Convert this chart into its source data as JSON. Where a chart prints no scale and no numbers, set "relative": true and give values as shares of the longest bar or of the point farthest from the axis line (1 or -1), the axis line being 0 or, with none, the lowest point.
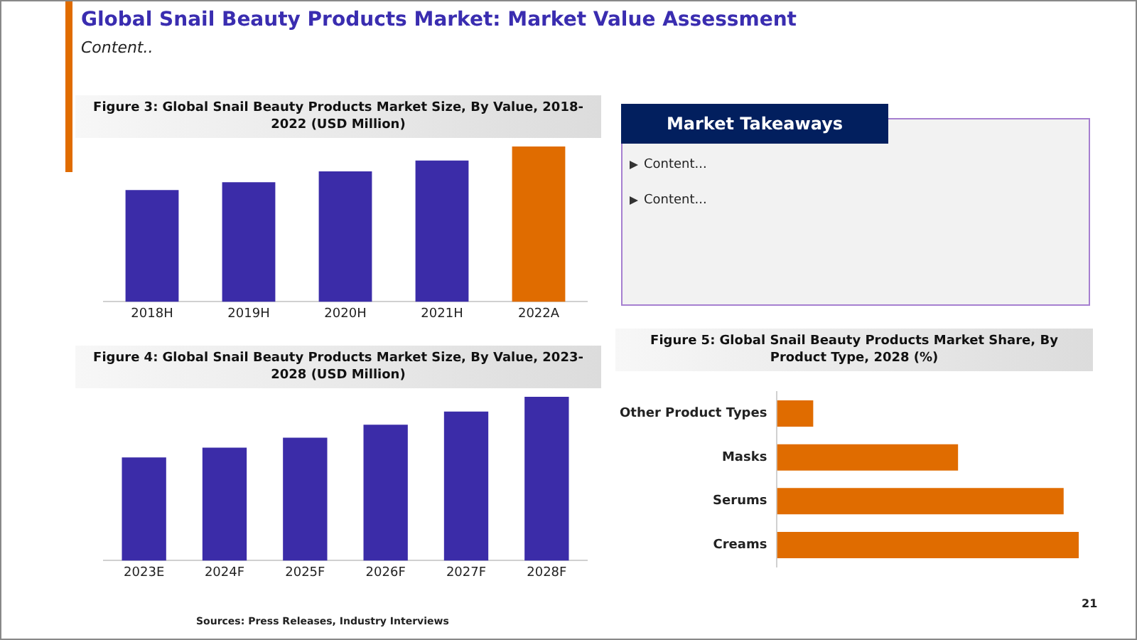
{
  "chart_data": [
    {
      "type": "other",
      "title": "Global Snail Beauty Products Market: Market Value Assessment",
      "subtitle": "Content..",
      "annotations": [
        "Sources: Press Releases, Industry Interviews",
        "21"
      ]
    },
    {
      "type": "bar",
      "title": "Figure 3: Global Snail Beauty Products Market Size, By Value, 2018-2022 (USD Million)",
      "categories": [
        "2018H",
        "2019H",
        "2020H",
        "2021H",
        "2022A"
      ],
      "values": [
        0.72,
        0.77,
        0.84,
        0.91,
        1
      ],
      "colors": [
        "#3b2ca8",
        "#3b2ca8",
        "#3b2ca8",
        "#3b2ca8",
        "#e06c00"
      ],
      "relative": true
    },
    {
      "type": "other",
      "title": "Market Takeaways",
      "annotations": [
        "Content...",
        "Content..."
      ]
    },
    {
      "type": "bar",
      "title": "Figure 4: Global Snail Beauty Products Market Size, By Value, 2023-2028 (USD Million)",
      "categories": [
        "2023E",
        "2024F",
        "2025F",
        "2026F",
        "2027F",
        "2028F"
      ],
      "values": [
        0.63,
        0.69,
        0.75,
        0.83,
        0.91,
        1
      ],
      "color": "#3b2ca8",
      "relative": true
    },
    {
      "type": "bar",
      "title": "Figure 5: Global Snail Beauty Products Market Share, By Product Type, 2028 (%)",
      "orientation": "horizontal",
      "categories": [
        "Other Product Types",
        "Masks",
        "Serums",
        "Creams"
      ],
      "values": [
        0.12,
        0.6,
        0.95,
        1
      ],
      "color": "#e06c00",
      "relative": true
    }
  ]
}
